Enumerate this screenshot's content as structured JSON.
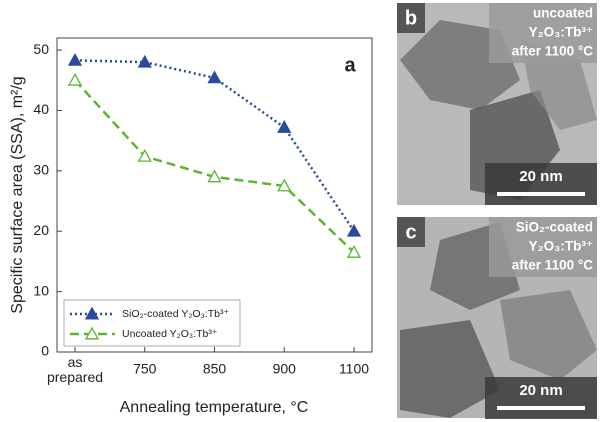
{
  "chart_data": {
    "type": "line",
    "panel_label": "a",
    "x_label": "Annealing temperature, °C",
    "y_label": "Specific surface area (SSA), m²/g",
    "categories": [
      "as prepared",
      "750",
      "850",
      "900",
      "1100"
    ],
    "series": [
      {
        "name": "SiO₂-coated Y₂O₃:Tb³⁺",
        "color": "#2b4a9c",
        "dash": "2,3",
        "marker": "filled-triangle",
        "values": [
          48.3,
          48,
          45.4,
          37.2,
          20
        ]
      },
      {
        "name": "Uncoated Y₂O₃:Tb³⁺",
        "color": "#5cb531",
        "dash": "9,5",
        "marker": "open-triangle",
        "values": [
          45,
          32.4,
          29,
          27.5,
          16.5
        ]
      }
    ],
    "ylim": [
      0,
      52
    ],
    "yticks": [
      0,
      10,
      20,
      30,
      40,
      50
    ],
    "legend": "lower-left"
  },
  "panels": [
    {
      "label": "b",
      "caption": [
        "uncoated",
        "Y₂O₃:Tb³⁺",
        "after 1100 °C"
      ],
      "scale": "20 nm"
    },
    {
      "label": "c",
      "caption": [
        "SiO₂-coated",
        "Y₂O₃:Tb³⁺",
        "after 1100 °C"
      ],
      "scale": "20 nm"
    }
  ]
}
